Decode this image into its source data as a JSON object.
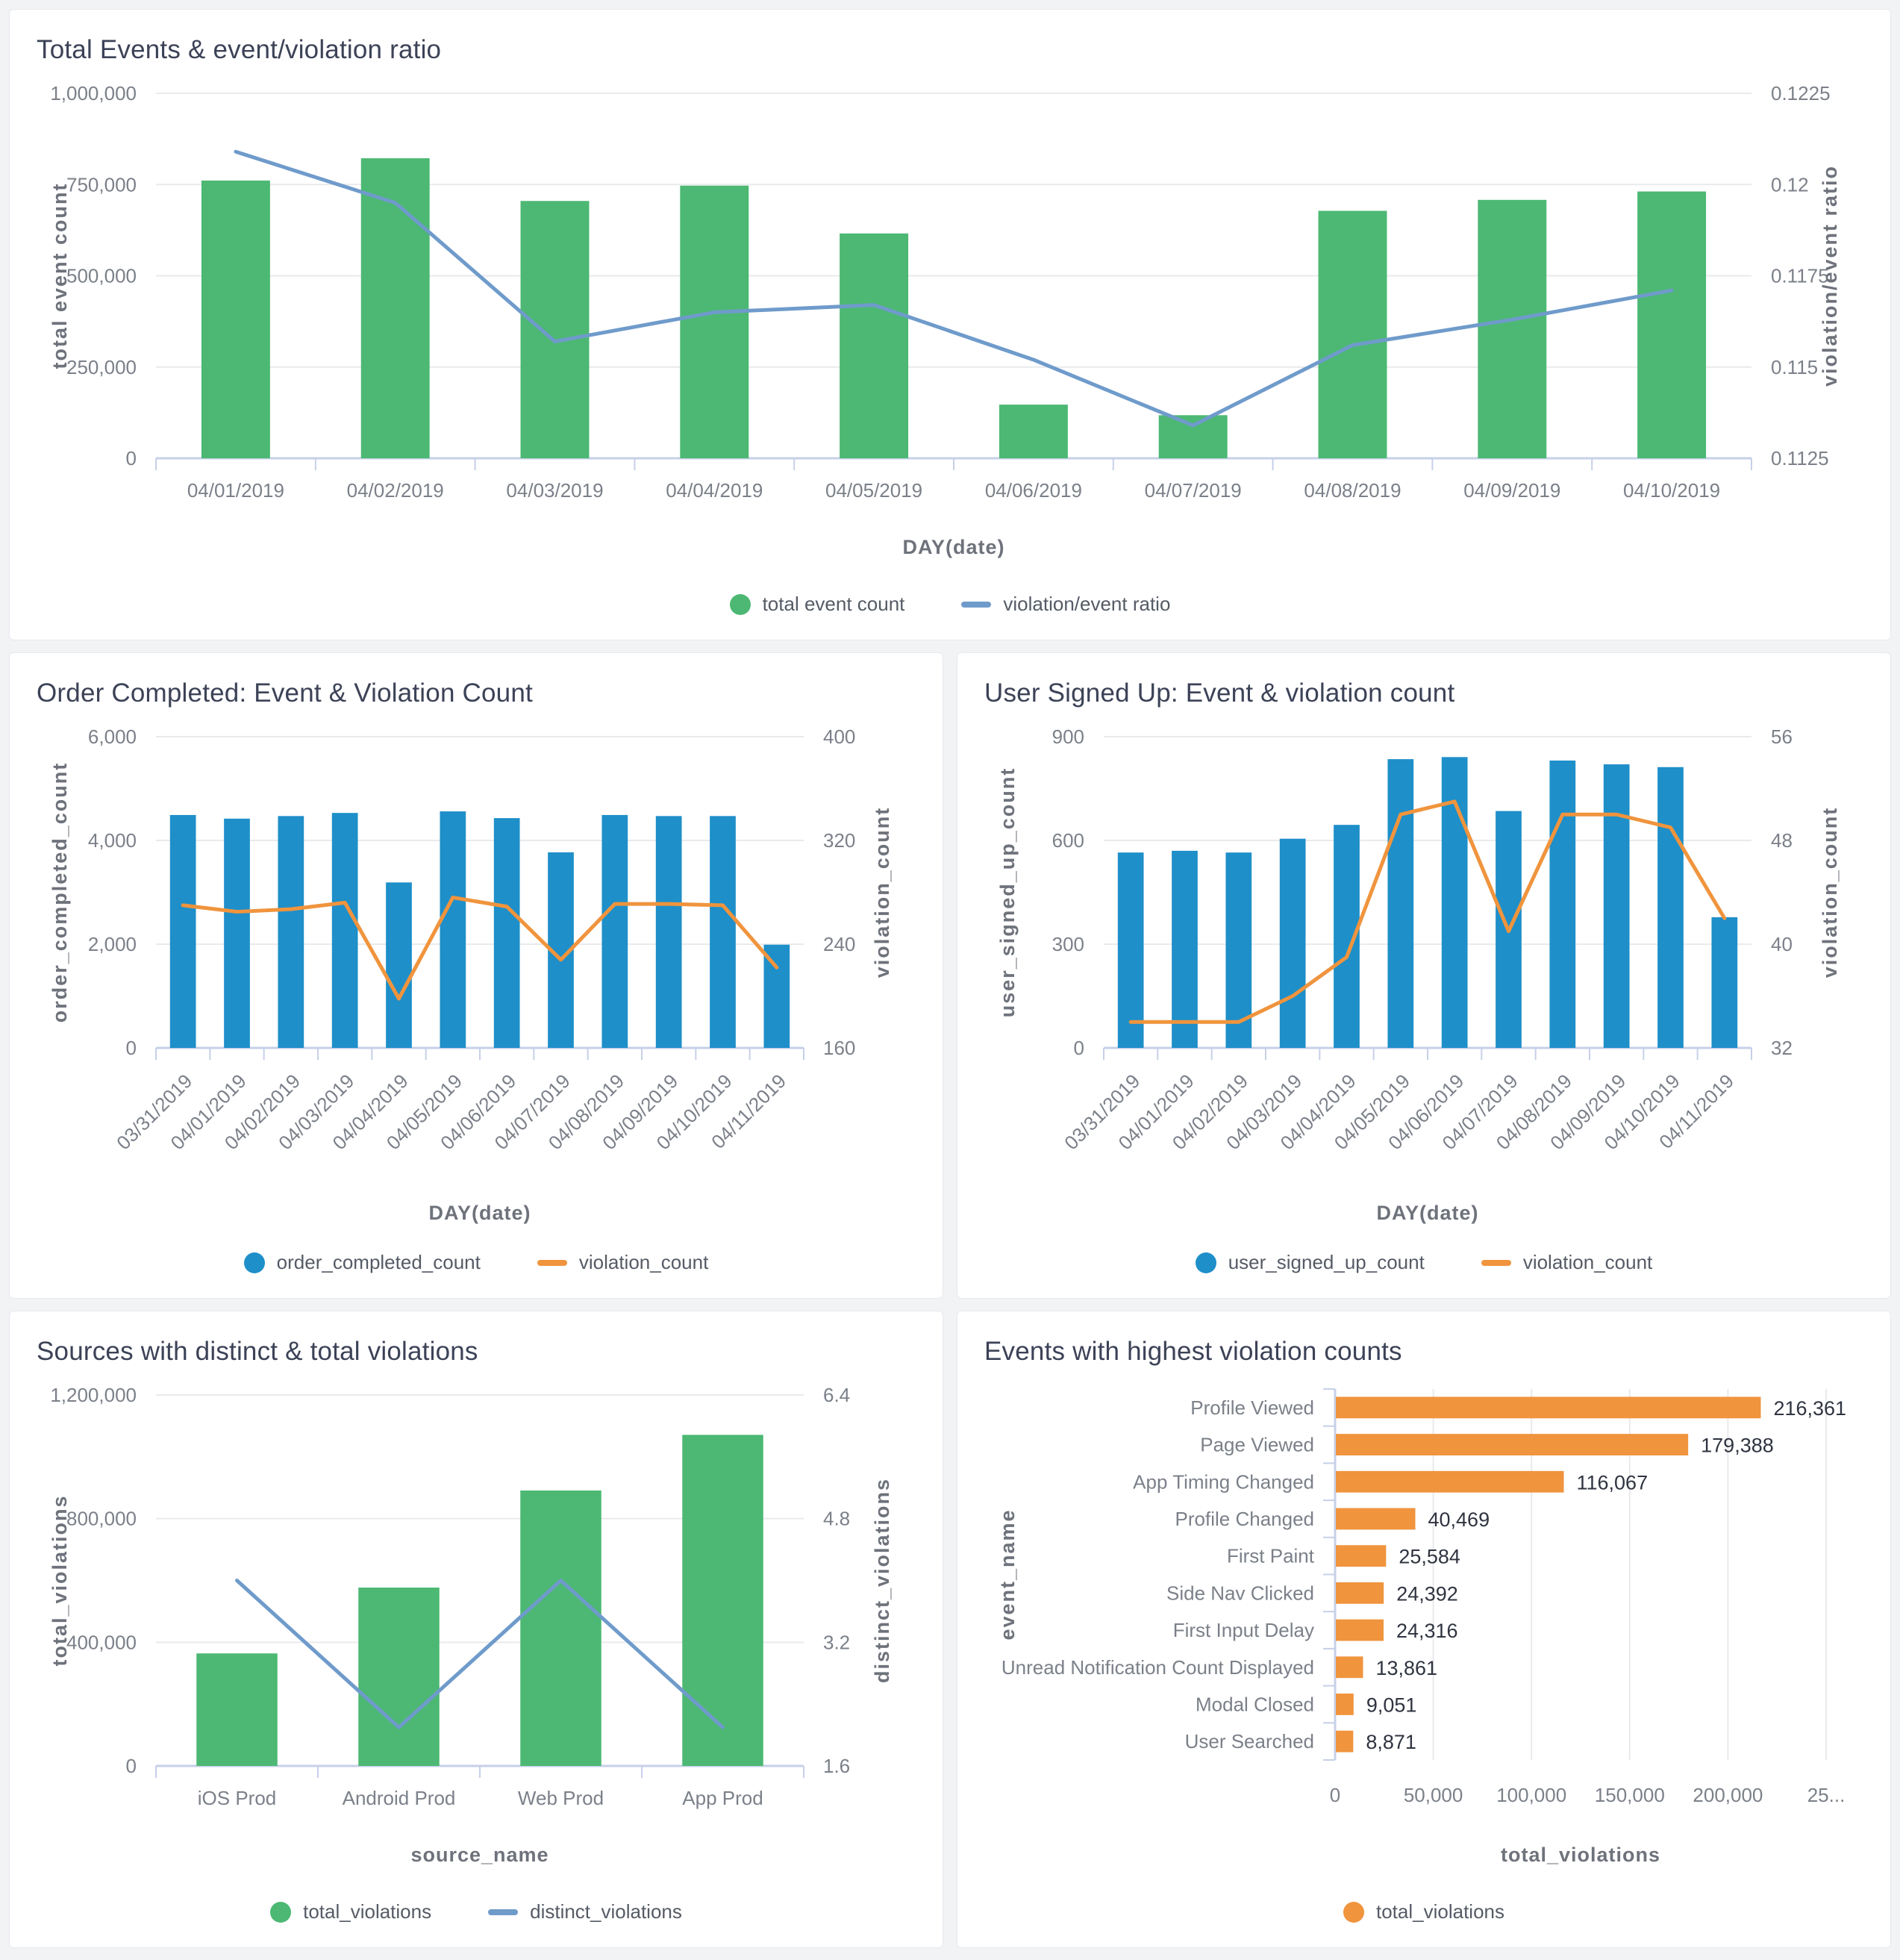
{
  "colors": {
    "page_bg": "#f2f3f5",
    "card_bg": "#ffffff",
    "card_border": "#e7e9ed",
    "green": "#4cb873",
    "blue": "#1e8fc9",
    "orange": "#f0943d",
    "steel_blue": "#6f9bcb",
    "grid": "#e9eaec",
    "axis_line": "#c6d0e8",
    "tick_text": "#7b8089",
    "axis_title_text": "#6e727b",
    "title_text": "#3c4257",
    "value_text": "#2f3440",
    "legend_text": "#555b65"
  },
  "chart_data": [
    {
      "id": "total-events",
      "type": "bar+line",
      "title": "Total Events & event/violation ratio",
      "categories": [
        "04/01/2019",
        "04/02/2019",
        "04/03/2019",
        "04/04/2019",
        "04/05/2019",
        "04/06/2019",
        "04/07/2019",
        "04/08/2019",
        "04/09/2019",
        "04/10/2019"
      ],
      "bar_series": {
        "name": "total event count",
        "color": "green",
        "values": [
          761000,
          822000,
          705000,
          747000,
          616000,
          147000,
          118000,
          678000,
          708000,
          731000
        ]
      },
      "line_series": {
        "name": "violation/event ratio",
        "color": "steel_blue",
        "values": [
          0.1209,
          0.1195,
          0.1157,
          0.1165,
          0.1167,
          0.1152,
          0.1134,
          0.1156,
          0.1163,
          0.1171
        ]
      },
      "left_axis": {
        "title": "total event count",
        "min": 0,
        "max": 1000000,
        "ticks": [
          0,
          250000,
          500000,
          750000,
          1000000
        ],
        "tick_labels": [
          "0",
          "250,000",
          "500,000",
          "750,000",
          "1,000,000"
        ]
      },
      "right_axis": {
        "title": "violation/event ratio",
        "min": 0.1125,
        "max": 0.1225,
        "ticks": [
          0.1125,
          0.115,
          0.1175,
          0.12,
          0.1225
        ],
        "tick_labels": [
          "0.1125",
          "0.115",
          "0.1175",
          "0.12",
          "0.1225"
        ]
      },
      "x_axis": {
        "title": "DAY(date)",
        "rotate_labels": false
      },
      "bar_ratio": 0.43,
      "grid": true,
      "legend_position": "bottom",
      "legend": [
        {
          "label": "total event count",
          "swatch": "dot",
          "color": "green"
        },
        {
          "label": "violation/event ratio",
          "swatch": "line",
          "color": "steel_blue"
        }
      ]
    },
    {
      "id": "order-completed",
      "type": "bar+line",
      "title": "Order Completed: Event & Violation Count",
      "categories": [
        "03/31/2019",
        "04/01/2019",
        "04/02/2019",
        "04/03/2019",
        "04/04/2019",
        "04/05/2019",
        "04/06/2019",
        "04/07/2019",
        "04/08/2019",
        "04/09/2019",
        "04/10/2019",
        "04/11/2019"
      ],
      "bar_series": {
        "name": "order_completed_count",
        "color": "blue",
        "values": [
          4490,
          4420,
          4470,
          4530,
          3190,
          4560,
          4430,
          3770,
          4490,
          4470,
          4470,
          1990
        ]
      },
      "line_series": {
        "name": "violation_count",
        "color": "orange",
        "values": [
          270,
          265,
          267,
          272,
          198,
          276,
          269,
          228,
          271,
          271,
          270,
          222
        ]
      },
      "left_axis": {
        "title": "order_completed_count",
        "min": 0,
        "max": 6000,
        "ticks": [
          0,
          2000,
          4000,
          6000
        ],
        "tick_labels": [
          "0",
          "2,000",
          "4,000",
          "6,000"
        ]
      },
      "right_axis": {
        "title": "violation_count",
        "min": 160,
        "max": 400,
        "ticks": [
          160,
          240,
          320,
          400
        ],
        "tick_labels": [
          "160",
          "240",
          "320",
          "400"
        ]
      },
      "x_axis": {
        "title": "DAY(date)",
        "rotate_labels": true
      },
      "bar_ratio": 0.48,
      "grid": true,
      "legend_position": "bottom",
      "legend": [
        {
          "label": "order_completed_count",
          "swatch": "dot",
          "color": "blue"
        },
        {
          "label": "violation_count",
          "swatch": "line",
          "color": "orange"
        }
      ]
    },
    {
      "id": "user-signed-up",
      "type": "bar+line",
      "title": "User Signed Up: Event & violation count",
      "categories": [
        "03/31/2019",
        "04/01/2019",
        "04/02/2019",
        "04/03/2019",
        "04/04/2019",
        "04/05/2019",
        "04/06/2019",
        "04/07/2019",
        "04/08/2019",
        "04/09/2019",
        "04/10/2019",
        "04/11/2019"
      ],
      "bar_series": {
        "name": "user_signed_up_count",
        "color": "blue",
        "values": [
          565,
          570,
          565,
          605,
          645,
          835,
          841,
          685,
          831,
          820,
          812,
          378
        ]
      },
      "line_series": {
        "name": "violation_count",
        "color": "orange",
        "values": [
          34,
          34,
          34,
          36,
          39,
          50,
          51,
          41,
          50,
          50,
          49,
          42
        ]
      },
      "left_axis": {
        "title": "user_signed_up_count",
        "min": 0,
        "max": 900,
        "ticks": [
          0,
          300,
          600,
          900
        ],
        "tick_labels": [
          "0",
          "300",
          "600",
          "900"
        ]
      },
      "right_axis": {
        "title": "violation_count",
        "min": 32,
        "max": 56,
        "ticks": [
          32,
          40,
          48,
          56
        ],
        "tick_labels": [
          "32",
          "40",
          "48",
          "56"
        ]
      },
      "x_axis": {
        "title": "DAY(date)",
        "rotate_labels": true
      },
      "bar_ratio": 0.48,
      "grid": true,
      "legend_position": "bottom",
      "legend": [
        {
          "label": "user_signed_up_count",
          "swatch": "dot",
          "color": "blue"
        },
        {
          "label": "violation_count",
          "swatch": "line",
          "color": "orange"
        }
      ]
    },
    {
      "id": "sources-violations",
      "type": "bar+line",
      "title": "Sources with distinct & total violations",
      "categories": [
        "iOS Prod",
        "Android Prod",
        "Web Prod",
        "App Prod"
      ],
      "bar_series": {
        "name": "total_violations",
        "color": "green",
        "values": [
          364000,
          577000,
          891000,
          1071000
        ]
      },
      "line_series": {
        "name": "distinct_violations",
        "color": "steel_blue",
        "values": [
          4.0,
          2.1,
          4.0,
          2.1
        ]
      },
      "left_axis": {
        "title": "total_violations",
        "min": 0,
        "max": 1200000,
        "ticks": [
          0,
          400000,
          800000,
          1200000
        ],
        "tick_labels": [
          "0",
          "400,000",
          "800,000",
          "1,200,000"
        ]
      },
      "right_axis": {
        "title": "distinct_violations",
        "min": 1.6,
        "max": 6.4,
        "ticks": [
          1.6,
          3.2,
          4.8,
          6.4
        ],
        "tick_labels": [
          "1.6",
          "3.2",
          "4.8",
          "6.4"
        ]
      },
      "x_axis": {
        "title": "source_name",
        "rotate_labels": false
      },
      "bar_ratio": 0.5,
      "grid": true,
      "legend_position": "bottom",
      "legend": [
        {
          "label": "total_violations",
          "swatch": "dot",
          "color": "green"
        },
        {
          "label": "distinct_violations",
          "swatch": "line",
          "color": "steel_blue"
        }
      ]
    },
    {
      "id": "highest-violations",
      "type": "bar",
      "orientation": "horizontal",
      "title": "Events with highest violation counts",
      "categories": [
        "Profile Viewed",
        "Page Viewed",
        "App Timing Changed",
        "Profile Changed",
        "First Paint",
        "Side Nav Clicked",
        "First Input Delay",
        "Unread Notification Count Displayed",
        "Modal Closed",
        "User Searched"
      ],
      "values": [
        216361,
        179388,
        116067,
        40469,
        25584,
        24392,
        24316,
        13861,
        9051,
        8871
      ],
      "value_labels": [
        "216,361",
        "179,388",
        "116,067",
        "40,469",
        "25,584",
        "24,392",
        "24,316",
        "13,861",
        "9,051",
        "8,871"
      ],
      "bar_color": "orange",
      "x_axis": {
        "title": "total_violations",
        "min": 0,
        "max": 250000,
        "ticks": [
          0,
          50000,
          100000,
          150000,
          200000,
          250000
        ],
        "tick_labels": [
          "0",
          "50,000",
          "100,000",
          "150,000",
          "200,000",
          "25..."
        ]
      },
      "y_axis": {
        "title": "event_name"
      },
      "bar_ratio": 0.58,
      "grid": true,
      "legend_position": "bottom",
      "legend": [
        {
          "label": "total_violations",
          "swatch": "dot",
          "color": "orange"
        }
      ]
    }
  ]
}
